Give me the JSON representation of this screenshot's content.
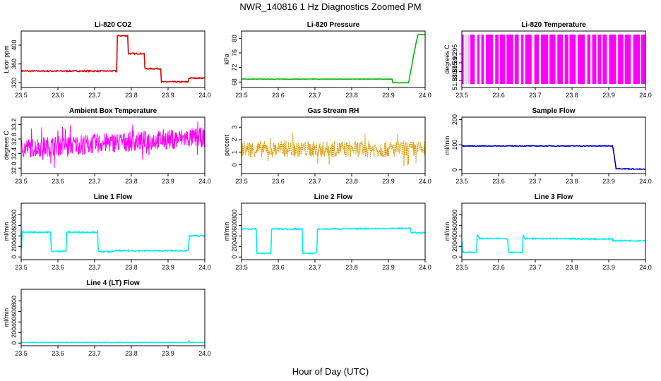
{
  "figure": {
    "title": "NWR_140816  1 Hz Diagnostics Zoomed PM",
    "xlabel": "Hour of Day (UTC)"
  },
  "chart_data": [
    {
      "type": "line",
      "title": "Li-820 CO2",
      "ylabel": "Licor ppm",
      "color": "#dd0000",
      "xlim": [
        23.5,
        24.0
      ],
      "ylim": [
        310,
        430
      ],
      "xticks": [
        23.5,
        23.6,
        23.7,
        23.8,
        23.9,
        24.0
      ],
      "yticks": [
        320,
        360,
        400
      ],
      "ytick_labels": [
        "320",
        "360",
        "400"
      ],
      "points": [
        [
          23.5,
          345
        ],
        [
          23.76,
          345
        ],
        [
          23.762,
          420
        ],
        [
          23.79,
          420
        ],
        [
          23.792,
          382
        ],
        [
          23.835,
          382
        ],
        [
          23.837,
          350
        ],
        [
          23.88,
          350
        ],
        [
          23.882,
          322
        ],
        [
          23.955,
          322
        ],
        [
          23.957,
          330
        ],
        [
          24.0,
          330
        ]
      ],
      "noise": 1.2
    },
    {
      "type": "line",
      "title": "Li-820 Pressure",
      "ylabel": "kPa",
      "color": "#00bb00",
      "xlim": [
        23.5,
        24.0
      ],
      "ylim": [
        66.5,
        82
      ],
      "xticks": [
        23.5,
        23.6,
        23.7,
        23.8,
        23.9,
        24.0
      ],
      "yticks": [
        68,
        72,
        76,
        80
      ],
      "ytick_labels": [
        "68",
        "72",
        "76",
        "80"
      ],
      "points": [
        [
          23.5,
          68.8
        ],
        [
          23.91,
          68.8
        ],
        [
          23.912,
          67.8
        ],
        [
          23.955,
          67.8
        ],
        [
          23.97,
          76
        ],
        [
          23.98,
          81
        ],
        [
          24.0,
          81
        ]
      ],
      "noise": 0.05
    },
    {
      "type": "bars",
      "title": "Li-820 Temperature",
      "ylabel": "degrees C",
      "color": "#ff00ff",
      "xlim": [
        23.5,
        24.0
      ],
      "ylim": [
        51.276,
        51.308
      ],
      "xticks": [
        23.5,
        23.6,
        23.7,
        23.8,
        23.9,
        24.0
      ],
      "yticks": [
        51.28,
        51.285,
        51.29,
        51.295
      ],
      "ytick_labels": [
        "51.280",
        "51.285",
        "51.290",
        "51.295"
      ],
      "range": [
        51.278,
        51.306
      ],
      "gaps": [
        23.505,
        23.512,
        23.518,
        23.535,
        23.548,
        23.56,
        23.585,
        23.6,
        23.618,
        23.64,
        23.655,
        23.668,
        23.69,
        23.71,
        23.735,
        23.755,
        23.775,
        23.79,
        23.81,
        23.835,
        23.85,
        23.866,
        23.88,
        23.895,
        23.92,
        23.94,
        23.96,
        23.985
      ]
    },
    {
      "type": "noise",
      "title": "Ambient Box Temperature",
      "ylabel": "degrees C",
      "color": "#ff00ff",
      "xlim": [
        23.5,
        24.0
      ],
      "ylim": [
        31.85,
        33.4
      ],
      "xticks": [
        23.5,
        23.6,
        23.7,
        23.8,
        23.9,
        24.0
      ],
      "yticks": [
        32.0,
        32.4,
        32.8,
        33.2
      ],
      "ytick_labels": [
        "32.0",
        "32.4",
        "32.8",
        "33.2"
      ],
      "center": [
        32.55,
        32.85
      ],
      "spread": 0.55
    },
    {
      "type": "noise",
      "title": "Gas Stream RH",
      "ylabel": "percent",
      "color": "#dd9900",
      "xlim": [
        23.5,
        24.0
      ],
      "ylim": [
        -0.7,
        3.8
      ],
      "xticks": [
        23.5,
        23.6,
        23.7,
        23.8,
        23.9,
        24.0
      ],
      "yticks": [
        0,
        1,
        2,
        3
      ],
      "ytick_labels": [
        "0",
        "1",
        "2",
        "3"
      ],
      "center": [
        1.25,
        1.25
      ],
      "spread": 1.3,
      "dashed": true
    },
    {
      "type": "line",
      "title": "Sample Flow",
      "ylabel": "ml/min",
      "color": "#0000cc",
      "xlim": [
        23.5,
        24.0
      ],
      "ylim": [
        -15,
        210
      ],
      "xticks": [
        23.5,
        23.6,
        23.7,
        23.8,
        23.9,
        24.0
      ],
      "yticks": [
        0,
        100,
        200
      ],
      "ytick_labels": [
        "0",
        "100",
        "200"
      ],
      "points": [
        [
          23.5,
          95
        ],
        [
          23.91,
          95
        ],
        [
          23.912,
          85
        ],
        [
          23.92,
          5
        ],
        [
          24.0,
          2
        ]
      ],
      "noise": 1.5
    },
    {
      "type": "line",
      "title": "Line 1 Flow",
      "ylabel": "ml/min",
      "color": "#00eeee",
      "xlim": [
        23.5,
        24.0
      ],
      "ylim": [
        -50,
        1020
      ],
      "xticks": [
        23.5,
        23.6,
        23.7,
        23.8,
        23.9,
        24.0
      ],
      "yticks": [
        0,
        200,
        400,
        600,
        800
      ],
      "ytick_labels": [
        "0",
        "200",
        "400",
        "600",
        "800"
      ],
      "points": [
        [
          23.5,
          130
        ],
        [
          23.503,
          470
        ],
        [
          23.58,
          470
        ],
        [
          23.582,
          110
        ],
        [
          23.622,
          110
        ],
        [
          23.624,
          470
        ],
        [
          23.708,
          470
        ],
        [
          23.71,
          100
        ],
        [
          23.75,
          100
        ],
        [
          23.752,
          120
        ],
        [
          23.955,
          120
        ],
        [
          23.958,
          400
        ],
        [
          24.0,
          400
        ]
      ],
      "noise": 12
    },
    {
      "type": "line",
      "title": "Line 2 Flow",
      "ylabel": "ml/min",
      "color": "#00eeee",
      "xlim": [
        23.5,
        24.0
      ],
      "ylim": [
        -50,
        1020
      ],
      "xticks": [
        23.5,
        23.6,
        23.7,
        23.8,
        23.9,
        24.0
      ],
      "yticks": [
        0,
        200,
        400,
        600,
        800
      ],
      "ytick_labels": [
        "0",
        "200",
        "400",
        "600",
        "800"
      ],
      "points": [
        [
          23.5,
          530
        ],
        [
          23.54,
          530
        ],
        [
          23.542,
          70
        ],
        [
          23.58,
          70
        ],
        [
          23.582,
          530
        ],
        [
          23.665,
          530
        ],
        [
          23.667,
          70
        ],
        [
          23.705,
          70
        ],
        [
          23.707,
          530
        ],
        [
          23.96,
          545
        ],
        [
          23.962,
          460
        ],
        [
          24.0,
          460
        ]
      ],
      "noise": 10
    },
    {
      "type": "line",
      "title": "Line 3 Flow",
      "ylabel": "ml/min",
      "color": "#00eeee",
      "xlim": [
        23.5,
        24.0
      ],
      "ylim": [
        -50,
        1020
      ],
      "xticks": [
        23.5,
        23.6,
        23.7,
        23.8,
        23.9,
        24.0
      ],
      "yticks": [
        0,
        200,
        400,
        600,
        800
      ],
      "ytick_labels": [
        "0",
        "200",
        "400",
        "600",
        "800"
      ],
      "points": [
        [
          23.5,
          300
        ],
        [
          23.502,
          90
        ],
        [
          23.54,
          90
        ],
        [
          23.542,
          420
        ],
        [
          23.548,
          350
        ],
        [
          23.625,
          350
        ],
        [
          23.627,
          90
        ],
        [
          23.665,
          90
        ],
        [
          23.667,
          420
        ],
        [
          23.672,
          350
        ],
        [
          23.91,
          340
        ],
        [
          23.912,
          310
        ],
        [
          24.0,
          310
        ]
      ],
      "noise": 10
    },
    {
      "type": "line",
      "title": "Line 4 (LT) Flow",
      "ylabel": "ml/min",
      "color": "#00eeee",
      "xlim": [
        23.5,
        24.0
      ],
      "ylim": [
        -50,
        1020
      ],
      "xticks": [
        23.5,
        23.6,
        23.7,
        23.8,
        23.9,
        24.0
      ],
      "yticks": [
        0,
        200,
        400,
        600,
        800
      ],
      "ytick_labels": [
        "0",
        "200",
        "400",
        "600",
        "800"
      ],
      "points": [
        [
          23.5,
          12
        ],
        [
          23.955,
          12
        ],
        [
          23.957,
          40
        ],
        [
          23.96,
          12
        ],
        [
          24.0,
          12
        ]
      ],
      "noise": 3
    }
  ]
}
